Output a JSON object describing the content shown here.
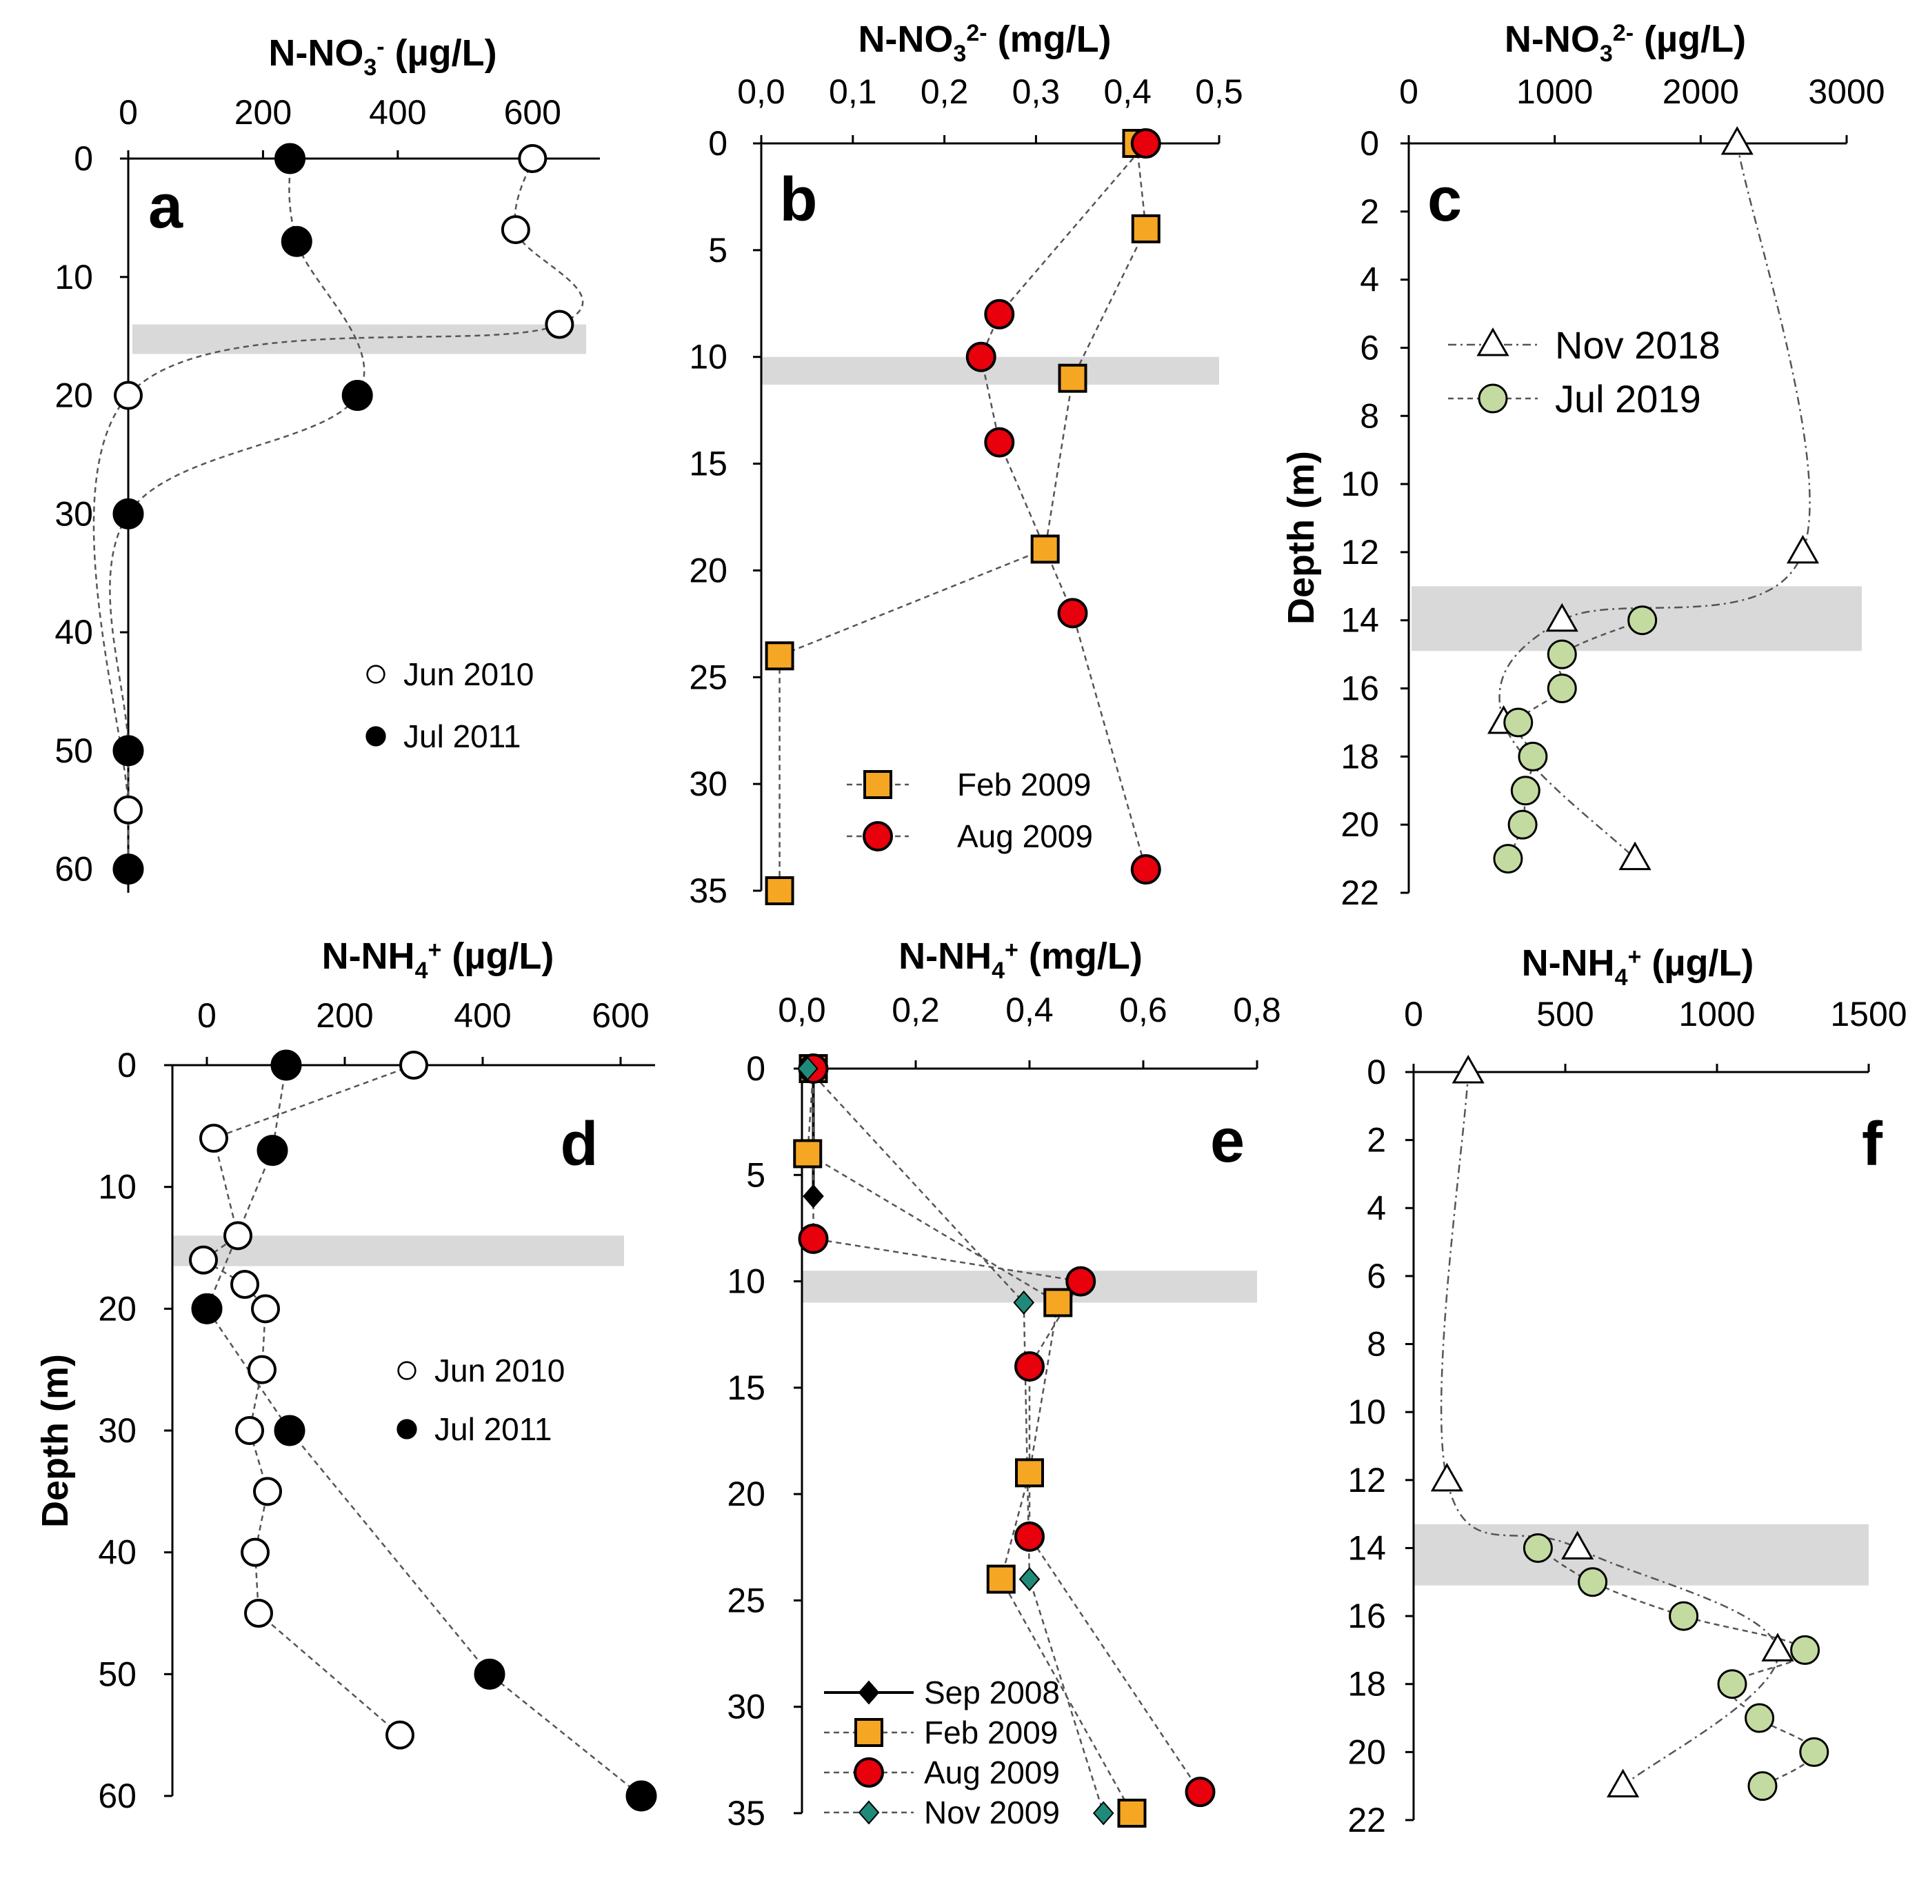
{
  "y_axis_label": "Depth (m)",
  "colors": {
    "open": "#ffffff",
    "filled": "#000000",
    "feb2009": "#f5a623",
    "aug2009": "#e8000d",
    "nov2009": "#1f8a7a",
    "jul2019": "#c3dba0",
    "pycnocline": "#d9d9d9"
  },
  "chart_data": [
    {
      "panel": "a",
      "type": "line",
      "title": "N-NO3- (µg/L)",
      "title_main": "N-NO",
      "title_sub": "3",
      "title_sup": "-",
      "title_unit": " (µg/L)",
      "xlabel": "N-NO3- (µg/L)",
      "ylabel": "",
      "xlim": [
        0,
        700
      ],
      "ylim": [
        0,
        62
      ],
      "xticks": [
        0,
        200,
        400,
        600
      ],
      "yticks": [
        0,
        10,
        20,
        30,
        40,
        50,
        60
      ],
      "grey_band": [
        14,
        16.5
      ],
      "legend": [
        "Jun 2010",
        "Jul 2011"
      ],
      "series": [
        {
          "name": "Jun 2010",
          "marker": "circle-open",
          "points": [
            [
              600,
              0
            ],
            [
              575,
              6
            ],
            [
              640,
              14
            ],
            [
              0,
              20
            ],
            [
              0,
              55
            ]
          ]
        },
        {
          "name": "Jul 2011",
          "marker": "circle-filled",
          "points": [
            [
              240,
              0
            ],
            [
              250,
              7
            ],
            [
              340,
              20
            ],
            [
              0,
              30
            ],
            [
              0,
              50
            ],
            [
              0,
              60
            ]
          ]
        }
      ]
    },
    {
      "panel": "b",
      "type": "line",
      "title": "N-NO32- (mg/L)",
      "title_main": "N-NO",
      "title_sub": "3",
      "title_sup": "2-",
      "title_unit": " (mg/L)",
      "xlabel": "N-NO32- (mg/L)",
      "ylabel": "",
      "xlim": [
        0,
        0.5
      ],
      "ylim": [
        0,
        35
      ],
      "xticks": [
        "0,0",
        "0,1",
        "0,2",
        "0,3",
        "0,4",
        "0,5"
      ],
      "yticks": [
        0,
        5,
        10,
        15,
        20,
        25,
        30,
        35
      ],
      "grey_band": [
        10,
        11.3
      ],
      "legend": [
        "Feb 2009",
        "Aug 2009"
      ],
      "series": [
        {
          "name": "Feb 2009",
          "marker": "square-orange",
          "points": [
            [
              0.41,
              0
            ],
            [
              0.42,
              4
            ],
            [
              0.34,
              11
            ],
            [
              0.31,
              19
            ],
            [
              0.02,
              24
            ],
            [
              0.02,
              35
            ]
          ]
        },
        {
          "name": "Aug 2009",
          "marker": "circle-red",
          "points": [
            [
              0.42,
              0
            ],
            [
              0.26,
              8
            ],
            [
              0.24,
              10
            ],
            [
              0.26,
              14
            ],
            [
              0.34,
              22
            ],
            [
              0.42,
              34
            ]
          ]
        }
      ]
    },
    {
      "panel": "c",
      "type": "line",
      "title": "N-NO32- (µg/L)",
      "title_main": "N-NO",
      "title_sub": "3",
      "title_sup": "2-",
      "title_unit": " (µg/L)",
      "xlabel": "N-NO32- (µg/L)",
      "ylabel": "Depth (m)",
      "xlim": [
        0,
        3000
      ],
      "ylim": [
        0,
        22
      ],
      "xticks": [
        0,
        1000,
        2000,
        3000
      ],
      "yticks": [
        0,
        2,
        4,
        6,
        8,
        10,
        12,
        14,
        16,
        18,
        20,
        22
      ],
      "grey_band": [
        13,
        14.9
      ],
      "legend": [
        "Nov 2018",
        "Jul  2019"
      ],
      "series": [
        {
          "name": "Nov 2018",
          "marker": "triangle-open",
          "points": [
            [
              2250,
              0
            ],
            [
              2700,
              12
            ],
            [
              1050,
              14
            ],
            [
              650,
              17
            ],
            [
              1550,
              21
            ]
          ]
        },
        {
          "name": "Jul 2019",
          "marker": "circle-green",
          "points": [
            [
              1600,
              14
            ],
            [
              1050,
              15
            ],
            [
              1050,
              16
            ],
            [
              750,
              17
            ],
            [
              850,
              18
            ],
            [
              800,
              19
            ],
            [
              780,
              20
            ],
            [
              680,
              21
            ]
          ]
        }
      ]
    },
    {
      "panel": "d",
      "type": "line",
      "title": "N-NH4+ (µg/L)",
      "title_main": "N-NH",
      "title_sub": "4",
      "title_sup": "+",
      "title_unit": " (µg/L)",
      "xlabel": "N-NH4+ (µg/L)",
      "ylabel": "Depth (m)",
      "xlim": [
        -50,
        650
      ],
      "ylim": [
        0,
        60
      ],
      "xticks": [
        0,
        200,
        400,
        600
      ],
      "yticks": [
        0,
        10,
        20,
        30,
        40,
        50,
        60
      ],
      "grey_band": [
        14,
        16.5
      ],
      "legend": [
        "Jun 2010",
        "Jul 2011"
      ],
      "series": [
        {
          "name": "Jun 2010",
          "marker": "circle-open",
          "points": [
            [
              300,
              0
            ],
            [
              10,
              6
            ],
            [
              45,
              14
            ],
            [
              -5,
              16
            ],
            [
              55,
              18
            ],
            [
              85,
              20
            ],
            [
              80,
              25
            ],
            [
              62,
              30
            ],
            [
              88,
              35
            ],
            [
              70,
              40
            ],
            [
              75,
              45
            ],
            [
              280,
              55
            ]
          ]
        },
        {
          "name": "Jul 2011",
          "marker": "circle-filled",
          "points": [
            [
              115,
              0
            ],
            [
              95,
              7
            ],
            [
              0,
              20
            ],
            [
              120,
              30
            ],
            [
              410,
              50
            ],
            [
              630,
              60
            ]
          ]
        }
      ]
    },
    {
      "panel": "e",
      "type": "line",
      "title": "N-NH4+ (mg/L)",
      "title_main": "N-NH",
      "title_sub": "4",
      "title_sup": "+",
      "title_unit": " (mg/L)",
      "xlabel": "N-NH4+ (mg/L)",
      "ylabel": "",
      "xlim": [
        0,
        0.8
      ],
      "ylim": [
        0,
        35
      ],
      "xticks": [
        "0,0",
        "0,2",
        "0,4",
        "0,6",
        "0,8"
      ],
      "yticks": [
        0,
        5,
        10,
        15,
        20,
        25,
        30,
        35
      ],
      "grey_band": [
        9.5,
        11
      ],
      "legend": [
        "Sep 2008",
        "Feb 2009",
        "Aug 2009",
        "Nov 2009"
      ],
      "series": [
        {
          "name": "Sep 2008",
          "marker": "diamond-black",
          "points": [
            [
              0.02,
              0
            ],
            [
              0.02,
              6
            ]
          ]
        },
        {
          "name": "Feb 2009",
          "marker": "square-orange",
          "points": [
            [
              0.02,
              0
            ],
            [
              0.01,
              4
            ],
            [
              0.45,
              11
            ],
            [
              0.4,
              19
            ],
            [
              0.35,
              24
            ],
            [
              0.58,
              35
            ]
          ]
        },
        {
          "name": "Aug 2009",
          "marker": "circle-red",
          "points": [
            [
              0.02,
              0
            ],
            [
              0.02,
              8
            ],
            [
              0.49,
              10
            ],
            [
              0.4,
              14
            ],
            [
              0.4,
              22
            ],
            [
              0.7,
              34
            ]
          ]
        },
        {
          "name": "Nov 2009",
          "marker": "diamond-teal",
          "points": [
            [
              0.01,
              0
            ],
            [
              0.39,
              11
            ],
            [
              0.4,
              24
            ],
            [
              0.53,
              35
            ]
          ]
        }
      ]
    },
    {
      "panel": "f",
      "type": "line",
      "title": "N-NH4+ (µg/L)",
      "title_main": "N-NH",
      "title_sub": "4",
      "title_sup": "+",
      "title_unit": " (µg/L)",
      "xlabel": "N-NH4+ (µg/L)",
      "ylabel": "",
      "xlim": [
        0,
        1500
      ],
      "ylim": [
        0,
        22
      ],
      "xticks": [
        0,
        500,
        1000,
        1500
      ],
      "yticks": [
        0,
        2,
        4,
        6,
        8,
        10,
        12,
        14,
        16,
        18,
        20,
        22
      ],
      "grey_band": [
        13.3,
        15.1
      ],
      "legend": [],
      "series": [
        {
          "name": "Nov 2018",
          "marker": "triangle-open",
          "points": [
            [
              180,
              0
            ],
            [
              110,
              12
            ],
            [
              540,
              14
            ],
            [
              1200,
              17
            ],
            [
              690,
              21
            ]
          ]
        },
        {
          "name": "Jul 2019",
          "marker": "circle-green",
          "points": [
            [
              410,
              14
            ],
            [
              590,
              15
            ],
            [
              890,
              16
            ],
            [
              1290,
              17
            ],
            [
              1050,
              18
            ],
            [
              1140,
              19
            ],
            [
              1320,
              20
            ],
            [
              1150,
              21
            ]
          ]
        }
      ]
    }
  ]
}
